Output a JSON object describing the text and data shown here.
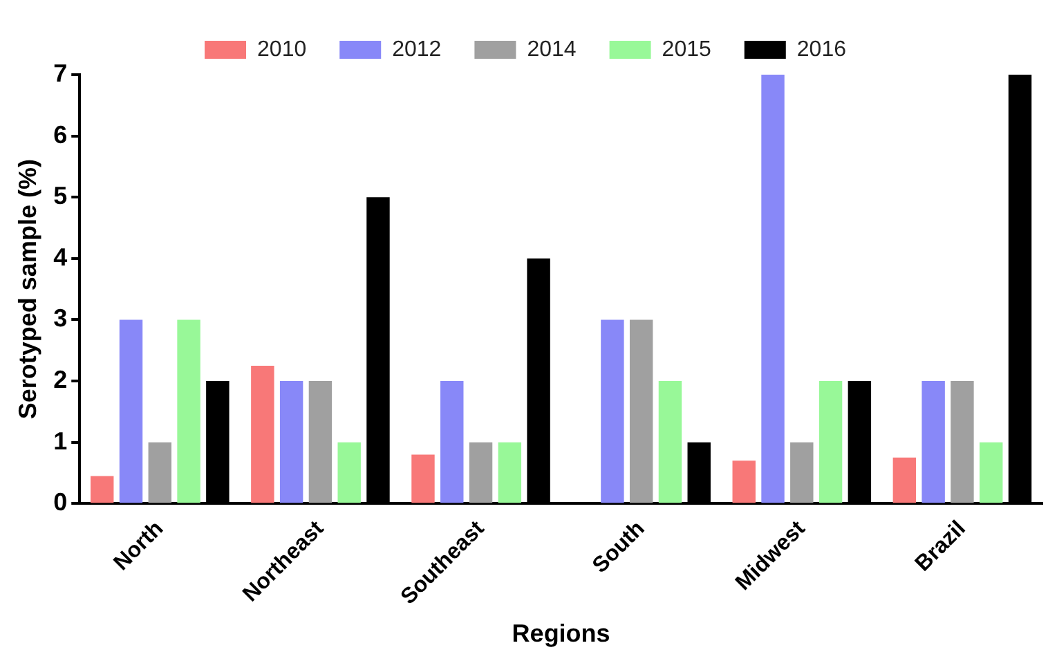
{
  "chart_data": {
    "type": "bar",
    "xlabel": "Regions",
    "ylabel": "Serotyped sample (%)",
    "categories": [
      "North",
      "Northeast",
      "Southeast",
      "South",
      "Midwest",
      "Brazil"
    ],
    "series": [
      {
        "name": "2010",
        "color": "#f87878",
        "values": [
          0.45,
          2.25,
          0.8,
          null,
          0.7,
          0.75
        ]
      },
      {
        "name": "2012",
        "color": "#8888f8",
        "values": [
          3,
          2,
          2,
          3,
          7,
          2
        ]
      },
      {
        "name": "2014",
        "color": "#a0a0a0",
        "values": [
          1,
          2,
          1,
          3,
          1,
          2
        ]
      },
      {
        "name": "2015",
        "color": "#98f898",
        "values": [
          3,
          1,
          1,
          2,
          2,
          1
        ]
      },
      {
        "name": "2016",
        "color": "#000000",
        "values": [
          2,
          5,
          4,
          1,
          2,
          7
        ]
      }
    ],
    "ylim": [
      0,
      7
    ],
    "yticks": [
      0,
      1,
      2,
      3,
      4,
      5,
      6,
      7
    ],
    "grid": false,
    "legend": "top"
  }
}
